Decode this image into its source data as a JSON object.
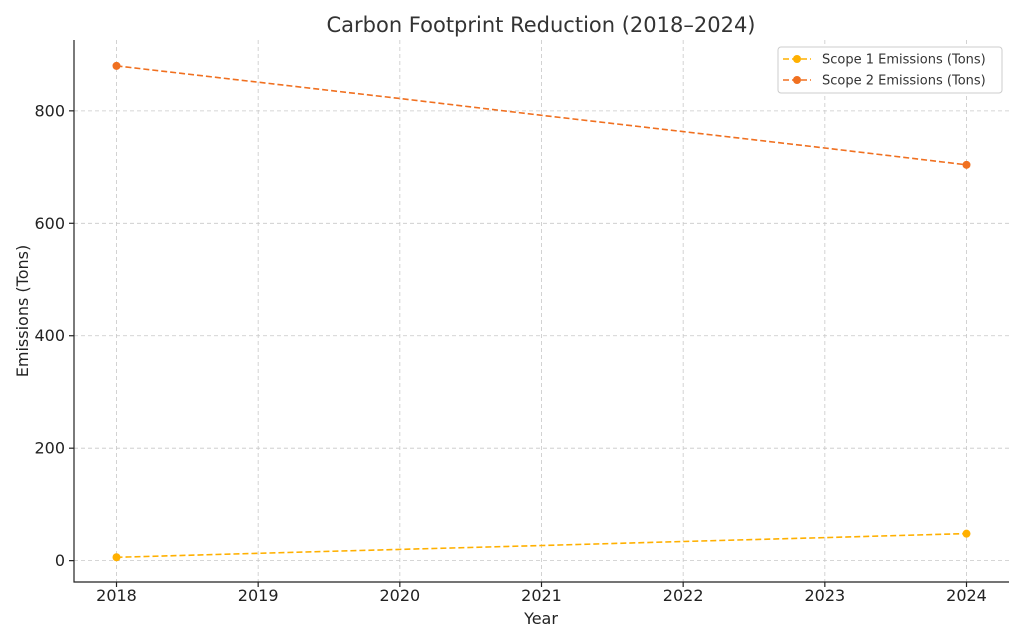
{
  "chart_data": {
    "type": "line",
    "title": "Carbon Footprint Reduction (2018–2024)",
    "xlabel": "Year",
    "ylabel": "Emissions (Tons)",
    "x": [
      2018,
      2019,
      2020,
      2021,
      2022,
      2023,
      2024
    ],
    "x_tick_labels": [
      "2018",
      "2019",
      "2020",
      "2021",
      "2022",
      "2023",
      "2024"
    ],
    "y_ticks": [
      0,
      200,
      400,
      600,
      800
    ],
    "y_tick_labels": [
      "0",
      "200",
      "400",
      "600",
      "800"
    ],
    "xlim": [
      2017.7,
      2024.3
    ],
    "ylim": [
      -38,
      926
    ],
    "grid": true,
    "legend_position": "top-right",
    "series": [
      {
        "name": "Scope 1 Emissions (Tons)",
        "color": "#ffb000",
        "points": [
          {
            "x": 2018,
            "y": 6
          },
          {
            "x": 2024,
            "y": 48
          }
        ],
        "line_values": [
          6,
          13,
          20,
          27,
          34,
          41,
          48
        ]
      },
      {
        "name": "Scope 2 Emissions (Tons)",
        "color": "#f07020",
        "points": [
          {
            "x": 2018,
            "y": 880
          },
          {
            "x": 2024,
            "y": 704
          }
        ],
        "line_values": [
          880,
          851,
          822,
          792,
          763,
          734,
          704
        ]
      }
    ]
  }
}
